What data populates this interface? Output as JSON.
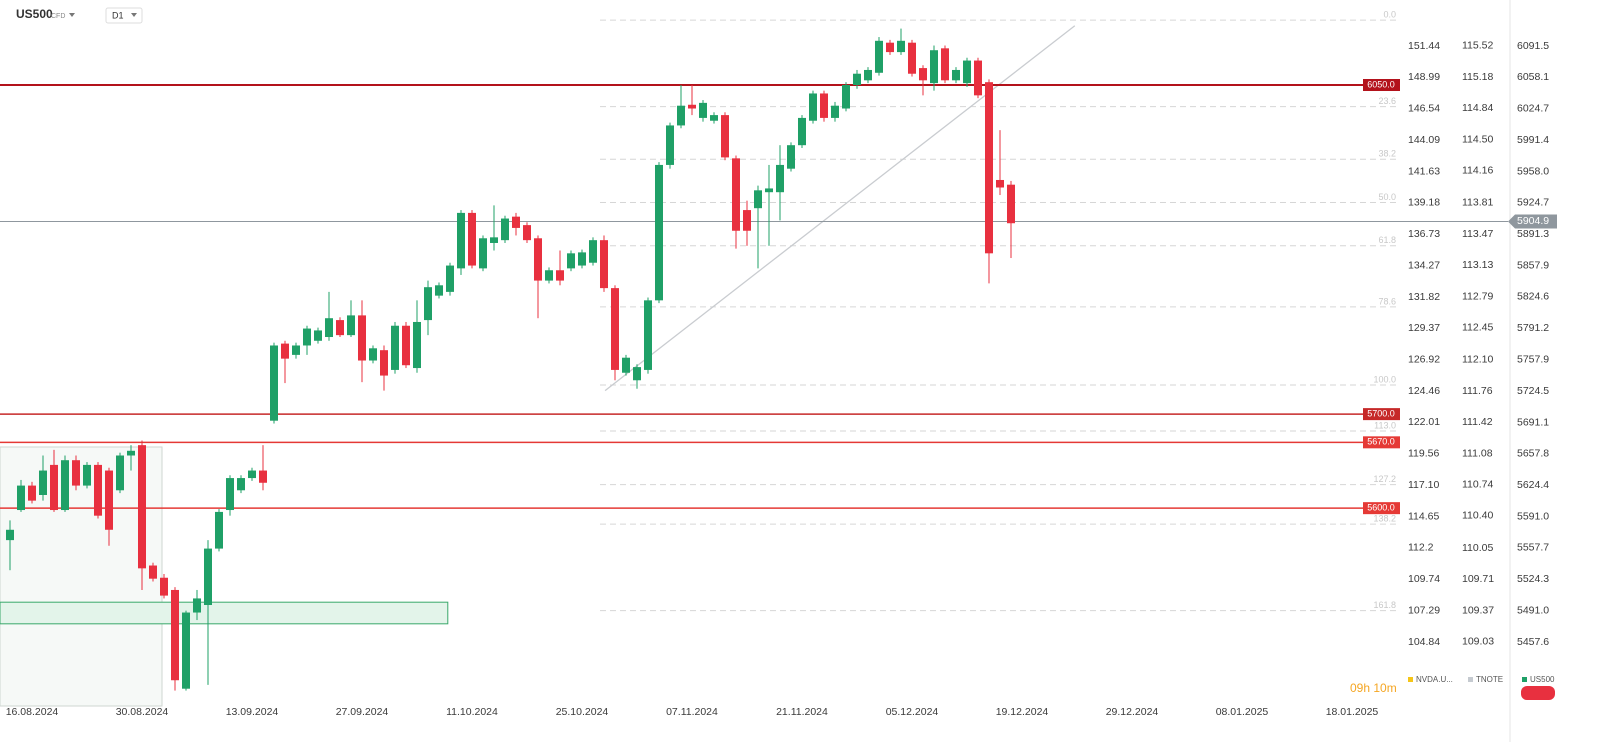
{
  "header": {
    "symbol": "US500",
    "kind": "CFD",
    "timeframe": "D1"
  },
  "countdown": "09h 10m",
  "legend": [
    {
      "name": "NVDA.U...",
      "color": "#f5c518"
    },
    {
      "name": "TNOTE",
      "color": "#c5cad0"
    },
    {
      "name": "US500",
      "color": "#1fa067"
    }
  ],
  "chart_data": {
    "type": "candlestick",
    "xlim": [
      -0.909,
      126.364
    ],
    "ylim": [
      5389.6,
      6140.4
    ],
    "xticks": [
      {
        "value": 2,
        "label": "16.08.2024"
      },
      {
        "value": 12,
        "label": "30.08.2024"
      },
      {
        "value": 22,
        "label": "13.09.2024"
      },
      {
        "value": 32,
        "label": "27.09.2024"
      },
      {
        "value": 42,
        "label": "11.10.2024"
      },
      {
        "value": 52,
        "label": "25.10.2024"
      },
      {
        "value": 62,
        "label": "07.11.2024"
      },
      {
        "value": 72,
        "label": "21.11.2024"
      },
      {
        "value": 82,
        "label": "05.12.2024"
      },
      {
        "value": 92,
        "label": "19.12.2024"
      },
      {
        "value": 102,
        "label": "29.12.2024"
      },
      {
        "value": 112,
        "label": "08.01.2025"
      },
      {
        "value": 122,
        "label": "18.01.2025"
      }
    ],
    "yticks": [
      6091.5,
      6058.1,
      6024.7,
      5991.4,
      {
        "value": 5958,
        "label": "5958.0"
      },
      5924.7,
      5891.3,
      5857.9,
      5824.6,
      5791.2,
      5757.9,
      5724.5,
      5691.1,
      5657.8,
      5624.4,
      {
        "value": 5591,
        "label": "5591.0"
      },
      5557.7,
      5524.3,
      {
        "value": 5491,
        "label": "5491.0"
      },
      5457.6
    ],
    "other_axes": [
      {
        "name": "NVDA.U...",
        "ylim": [
          99.84,
          155.04
        ],
        "yticks": [
          151.44,
          148.99,
          146.54,
          144.09,
          141.63,
          139.18,
          136.73,
          134.27,
          131.82,
          129.37,
          126.92,
          124.46,
          122.01,
          119.56,
          {
            "value": 117.1,
            "label": "117.10"
          },
          114.65,
          112.2,
          109.74,
          107.29,
          104.84
        ]
      },
      {
        "name": "TNOTE",
        "ylim": [
          108.33,
          116.02
        ],
        "yticks": [
          115.52,
          115.18,
          114.84,
          {
            "value": 114.5,
            "label": "114.50"
          },
          114.16,
          113.81,
          113.47,
          113.13,
          112.79,
          112.45,
          {
            "value": 112.1,
            "label": "112.10"
          },
          111.76,
          111.42,
          111.08,
          110.74,
          {
            "value": 110.4,
            "label": "110.40"
          },
          110.05,
          109.71,
          109.37,
          109.03
        ]
      }
    ],
    "series": [
      {
        "name": "US500",
        "up_color": "#1fa067",
        "down_color": "#e8303f",
        "x": [
          0,
          1,
          2,
          3,
          4,
          5,
          6,
          7,
          8,
          9,
          10,
          11,
          12,
          13,
          14,
          15,
          16,
          17,
          18,
          19,
          20,
          21,
          22,
          23,
          24,
          25,
          26,
          27,
          28,
          29,
          30,
          31,
          32,
          33,
          34,
          35,
          36,
          37,
          38,
          39,
          40,
          41,
          42,
          43,
          44,
          45,
          46,
          47,
          48,
          49,
          50,
          51,
          52,
          53,
          54,
          55,
          56,
          57,
          58,
          59,
          60,
          61,
          62,
          63,
          64,
          65,
          66,
          67,
          68,
          69,
          70,
          71,
          72,
          73,
          74,
          75,
          76,
          77,
          78,
          79,
          80,
          81,
          82,
          83,
          84,
          85,
          86,
          87,
          88,
          89,
          90,
          91
        ],
        "open": [
          5566,
          5598,
          5624,
          5614,
          5646,
          5598,
          5651,
          5624,
          5646,
          5640,
          5619,
          5656,
          5667,
          5539,
          5526,
          5513,
          5408,
          5489,
          5497,
          5557,
          5598,
          5619,
          5632,
          5640,
          5693,
          5775,
          5763,
          5773,
          5778,
          5782,
          5800,
          5784,
          5805,
          5757,
          5768,
          5747,
          5794,
          5749,
          5800,
          5826,
          5830,
          5855,
          5914,
          5855,
          5882,
          5885,
          5910,
          5901,
          5887,
          5842,
          5853,
          5855,
          5858,
          5861,
          5885,
          5834,
          5744,
          5736,
          5747,
          5821,
          5965,
          6007,
          6029,
          6015,
          6012,
          6018,
          5972,
          5917,
          5919,
          5936,
          5936,
          5961,
          5986,
          6012,
          6041,
          6015,
          6025,
          6050,
          6055,
          6063,
          6095,
          6085,
          6095,
          6068,
          6052,
          6089,
          6055,
          6052,
          6076,
          6053,
          5949,
          5944
        ],
        "high": [
          5587,
          5630,
          5628,
          5656,
          5662,
          5656,
          5656,
          5649,
          5649,
          5643,
          5659,
          5667,
          5672,
          5542,
          5530,
          5516,
          5491,
          5513,
          5566,
          5599,
          5635,
          5635,
          5643,
          5667,
          5776,
          5778,
          5776,
          5794,
          5792,
          5830,
          5803,
          5821,
          5821,
          5773,
          5773,
          5798,
          5798,
          5821,
          5842,
          5840,
          5861,
          5917,
          5917,
          5890,
          5922,
          5911,
          5914,
          5904,
          5890,
          5856,
          5874,
          5874,
          5875,
          5888,
          5890,
          5837,
          5763,
          5753,
          5824,
          5968,
          6010,
          6050,
          6050,
          6034,
          6021,
          6021,
          5975,
          5927,
          5943,
          5965,
          5986,
          5989,
          6018,
          6044,
          6044,
          6032,
          6053,
          6066,
          6069,
          6101,
          6098,
          6110,
          6098,
          6071,
          6092,
          6092,
          6069,
          6079,
          6079,
          6056,
          6002,
          5948
        ],
        "low": [
          5534,
          5596,
          5605,
          5608,
          5596,
          5596,
          5619,
          5621,
          5589,
          5560,
          5616,
          5640,
          5513,
          5522,
          5504,
          5406,
          5406,
          5481,
          5412,
          5554,
          5592,
          5616,
          5629,
          5619,
          5690,
          5733,
          5759,
          5763,
          5775,
          5778,
          5782,
          5782,
          5734,
          5754,
          5725,
          5743,
          5749,
          5744,
          5784,
          5823,
          5826,
          5848,
          5855,
          5852,
          5874,
          5882,
          5890,
          5882,
          5802,
          5839,
          5837,
          5852,
          5855,
          5858,
          5830,
          5736,
          5741,
          5727,
          5743,
          5818,
          5961,
          6004,
          6018,
          6011,
          6009,
          5970,
          5876,
          5879,
          5855,
          5879,
          5906,
          5958,
          5983,
          6009,
          6011,
          6011,
          6022,
          6046,
          6052,
          6060,
          6082,
          6082,
          6059,
          6039,
          6044,
          6052,
          6052,
          6048,
          6036,
          5839,
          5933,
          5866
        ],
        "close": [
          5577,
          5624,
          5608,
          5640,
          5598,
          5651,
          5624,
          5646,
          5592,
          5577,
          5656,
          5661,
          5536,
          5525,
          5507,
          5417,
          5489,
          5504,
          5557,
          5596,
          5632,
          5632,
          5640,
          5627,
          5773,
          5759,
          5773,
          5791,
          5789,
          5802,
          5784,
          5805,
          5757,
          5770,
          5741,
          5794,
          5752,
          5798,
          5835,
          5837,
          5858,
          5914,
          5858,
          5887,
          5888,
          5908,
          5898,
          5885,
          5842,
          5853,
          5842,
          5871,
          5872,
          5885,
          5834,
          5747,
          5760,
          5750,
          5821,
          5965,
          6007,
          6028,
          6025,
          6031,
          6018,
          5973,
          5895,
          5895,
          5938,
          5940,
          5965,
          5986,
          6015,
          6041,
          6015,
          6028,
          6050,
          6062,
          6066,
          6097,
          6085,
          6097,
          6062,
          6055,
          6087,
          6055,
          6066,
          6076,
          6039,
          5871,
          5941,
          5903
        ]
      }
    ],
    "levels": [
      {
        "value": 6050,
        "label": "6050.0",
        "color": "#b3121b"
      },
      {
        "value": 5700,
        "label": "5700.0",
        "color": "#c62828"
      },
      {
        "value": 5670,
        "label": "5670.0",
        "color": "#e53935"
      },
      {
        "value": 5600,
        "label": "5600.0",
        "color": "#e53935"
      }
    ],
    "last_price": {
      "value": 5904.9,
      "label": "5904.9",
      "color": "#8f979e"
    },
    "fib": {
      "levels": [
        "0.0",
        "23.6",
        "38.2",
        "50.0",
        "61.8",
        "78.6",
        "100.0",
        "113.0",
        "127.2",
        "138.2",
        "161.8"
      ],
      "prices": [
        6119,
        6027,
        5971,
        5925,
        5879,
        5814,
        5731,
        5682,
        5625,
        5583,
        5491
      ]
    },
    "trendline": {
      "x": [
        54.1,
        96.8
      ],
      "y": [
        5725,
        6113
      ]
    },
    "zone": {
      "x": [
        -0.909,
        39.8
      ],
      "y": [
        5477,
        5500
      ]
    }
  }
}
